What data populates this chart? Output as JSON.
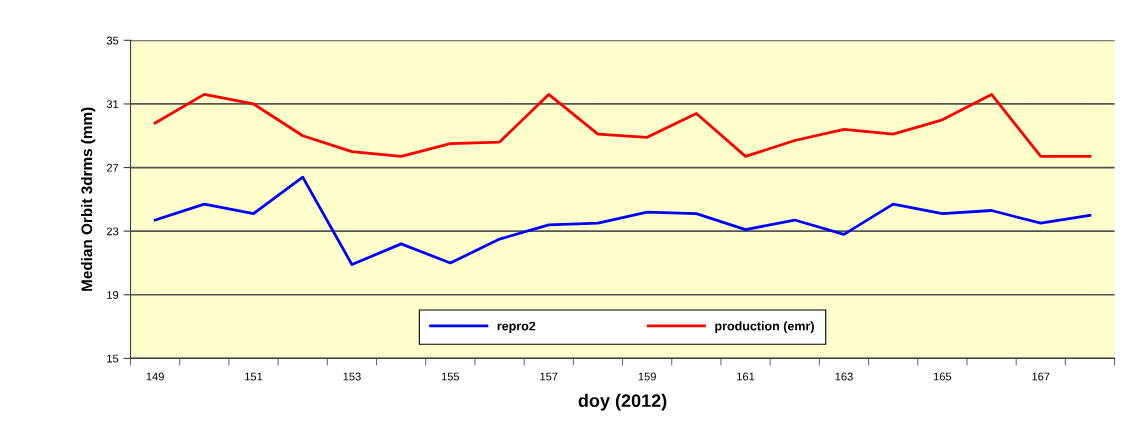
{
  "chart_data": {
    "type": "line",
    "xlabel": "doy (2012)",
    "ylabel": "Median Orbit 3drms (mm)",
    "categories": [
      "149",
      null,
      "151",
      null,
      "153",
      null,
      "155",
      null,
      "157",
      null,
      "159",
      null,
      "161",
      null,
      "163",
      null,
      "165",
      null,
      "167",
      null
    ],
    "series": [
      {
        "name": "repro2",
        "color": "#0000ff",
        "values": [
          23.7,
          24.7,
          24.1,
          26.4,
          20.9,
          22.2,
          21.0,
          22.5,
          23.4,
          23.5,
          24.2,
          24.1,
          23.1,
          23.7,
          22.8,
          24.7,
          24.1,
          24.3,
          23.5,
          24.0
        ]
      },
      {
        "name": "production (emr)",
        "color": "#ff0000",
        "values": [
          29.8,
          31.6,
          31.0,
          29.0,
          28.0,
          27.7,
          28.5,
          28.6,
          31.6,
          29.1,
          28.9,
          30.4,
          27.7,
          28.7,
          29.4,
          29.1,
          30.0,
          31.6,
          27.7,
          27.7
        ]
      }
    ],
    "ylim": [
      15,
      35
    ],
    "yticks": [
      15,
      19,
      23,
      27,
      31,
      35
    ],
    "grid": "y",
    "legend": "bottom",
    "marker": "none",
    "line_style": "solid"
  }
}
